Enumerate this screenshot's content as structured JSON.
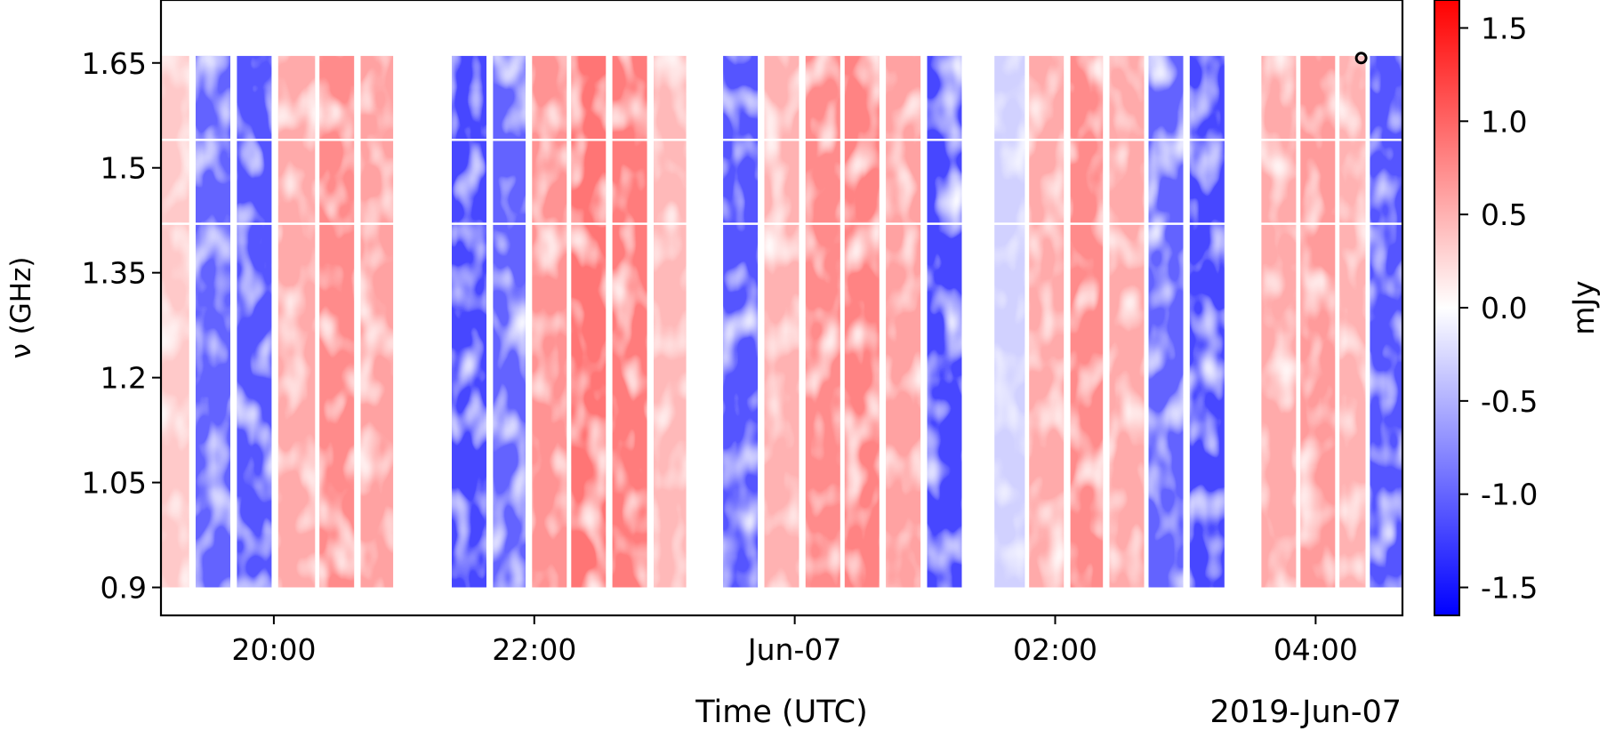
{
  "chart_data": {
    "type": "heatmap",
    "title": "",
    "xlabel": "Time (UTC)",
    "ylabel": "ν (GHz)",
    "x_offset_label": "2019-Jun-07",
    "xlim": [
      "2019-06-06T19:08",
      "2019-06-07T04:40"
    ],
    "ylim": [
      0.86,
      1.74
    ],
    "x_ticks": [
      {
        "time": "2019-06-06T20:00",
        "label": "20:00"
      },
      {
        "time": "2019-06-06T22:00",
        "label": "22:00"
      },
      {
        "time": "2019-06-07T00:00",
        "label": "Jun-07"
      },
      {
        "time": "2019-06-07T02:00",
        "label": "02:00"
      },
      {
        "time": "2019-06-07T04:00",
        "label": "04:00"
      }
    ],
    "y_ticks": [
      {
        "value": 0.9,
        "label": "0.9"
      },
      {
        "value": 1.05,
        "label": "1.05"
      },
      {
        "value": 1.2,
        "label": "1.2"
      },
      {
        "value": 1.35,
        "label": "1.35"
      },
      {
        "value": 1.5,
        "label": "1.5"
      },
      {
        "value": 1.65,
        "label": "1.65"
      }
    ],
    "frequency_range_ghz": [
      0.9,
      1.66
    ],
    "flagged_channels_ghz": [
      1.42,
      1.54
    ],
    "colorbar": {
      "label": "mJy",
      "range": [
        -1.65,
        1.65
      ],
      "colormap": [
        "#0000ff",
        "#ffffff",
        "#ff0000"
      ],
      "ticks": [
        {
          "value": 1.5,
          "label": "1.5"
        },
        {
          "value": 1.0,
          "label": "1.0"
        },
        {
          "value": 0.5,
          "label": "0.5"
        },
        {
          "value": 0.0,
          "label": "0.0"
        },
        {
          "value": -0.5,
          "label": "-0.5"
        },
        {
          "value": -1.0,
          "label": "-1.0"
        },
        {
          "value": -1.5,
          "label": "-1.5"
        }
      ]
    },
    "scans": [
      {
        "start": "2019-06-06T19:08",
        "end": "2019-06-06T19:21",
        "mean_mjy": 0.35
      },
      {
        "start": "2019-06-06T19:24",
        "end": "2019-06-06T19:40",
        "mean_mjy": -1.0
      },
      {
        "start": "2019-06-06T19:43",
        "end": "2019-06-06T19:59",
        "mean_mjy": -1.1
      },
      {
        "start": "2019-06-06T20:02",
        "end": "2019-06-06T20:19",
        "mean_mjy": 0.55
      },
      {
        "start": "2019-06-06T20:21",
        "end": "2019-06-06T20:37",
        "mean_mjy": 0.75
      },
      {
        "start": "2019-06-06T20:40",
        "end": "2019-06-06T20:55",
        "mean_mjy": 0.6
      },
      {
        "start": "2019-06-06T21:22",
        "end": "2019-06-06T21:38",
        "mean_mjy": -1.2
      },
      {
        "start": "2019-06-06T21:41",
        "end": "2019-06-06T21:56",
        "mean_mjy": -1.0
      },
      {
        "start": "2019-06-06T21:59",
        "end": "2019-06-06T22:15",
        "mean_mjy": 0.7
      },
      {
        "start": "2019-06-06T22:17",
        "end": "2019-06-06T22:33",
        "mean_mjy": 0.9
      },
      {
        "start": "2019-06-06T22:36",
        "end": "2019-06-06T22:52",
        "mean_mjy": 0.85
      },
      {
        "start": "2019-06-06T22:55",
        "end": "2019-06-06T23:10",
        "mean_mjy": 0.45
      },
      {
        "start": "2019-06-06T23:27",
        "end": "2019-06-06T23:43",
        "mean_mjy": -1.1
      },
      {
        "start": "2019-06-06T23:46",
        "end": "2019-06-07T00:02",
        "mean_mjy": 0.5
      },
      {
        "start": "2019-06-07T00:05",
        "end": "2019-06-07T00:21",
        "mean_mjy": 0.75
      },
      {
        "start": "2019-06-07T00:23",
        "end": "2019-06-07T00:39",
        "mean_mjy": 0.8
      },
      {
        "start": "2019-06-07T00:42",
        "end": "2019-06-07T00:58",
        "mean_mjy": 0.6
      },
      {
        "start": "2019-06-07T01:01",
        "end": "2019-06-07T01:17",
        "mean_mjy": -1.2
      },
      {
        "start": "2019-06-07T01:32",
        "end": "2019-06-07T01:46",
        "mean_mjy": -0.3
      },
      {
        "start": "2019-06-07T01:48",
        "end": "2019-06-07T02:04",
        "mean_mjy": 0.55
      },
      {
        "start": "2019-06-07T02:07",
        "end": "2019-06-07T02:22",
        "mean_mjy": 0.75
      },
      {
        "start": "2019-06-07T02:25",
        "end": "2019-06-07T02:41",
        "mean_mjy": 0.55
      },
      {
        "start": "2019-06-07T02:43",
        "end": "2019-06-07T02:59",
        "mean_mjy": -1.0
      },
      {
        "start": "2019-06-07T03:02",
        "end": "2019-06-07T03:18",
        "mean_mjy": -1.2
      },
      {
        "start": "2019-06-07T03:35",
        "end": "2019-06-07T03:51",
        "mean_mjy": 0.55
      },
      {
        "start": "2019-06-07T03:53",
        "end": "2019-06-07T04:09",
        "mean_mjy": 0.65
      },
      {
        "start": "2019-06-07T04:11",
        "end": "2019-06-07T04:23",
        "mean_mjy": 0.5
      },
      {
        "start": "2019-06-07T04:25",
        "end": "2019-06-07T04:40",
        "mean_mjy": -1.1
      }
    ],
    "marker": {
      "time": "2019-06-07T04:21",
      "freq_ghz": 1.657,
      "shape": "open-circle"
    }
  }
}
